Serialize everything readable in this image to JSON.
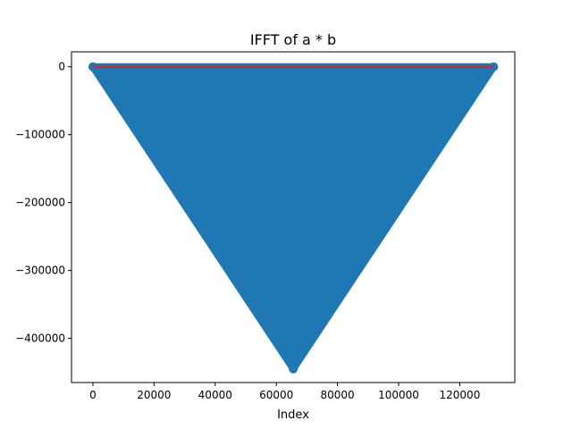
{
  "chart_data": {
    "type": "stem",
    "title": "IFFT of a * b",
    "xlabel": "Index",
    "ylabel": "",
    "xlim": [
      -7000,
      138000
    ],
    "ylim": [
      -465000,
      22000
    ],
    "xticks": [
      0,
      20000,
      40000,
      60000,
      80000,
      100000,
      120000
    ],
    "xtick_labels": [
      "0",
      "20000",
      "40000",
      "60000",
      "80000",
      "100000",
      "120000"
    ],
    "yticks": [
      0,
      -100000,
      -200000,
      -300000,
      -400000
    ],
    "ytick_labels": [
      "0",
      "−100000",
      "−200000",
      "−300000",
      "−400000"
    ],
    "series": [
      {
        "x": [
          0,
          65536,
          131072
        ],
        "y": [
          0,
          -445000,
          0
        ],
        "marker_color": "#1f77b4",
        "baseline_color": "#d62728",
        "baseline_y": 0
      }
    ],
    "grid": false,
    "legend": "none"
  }
}
